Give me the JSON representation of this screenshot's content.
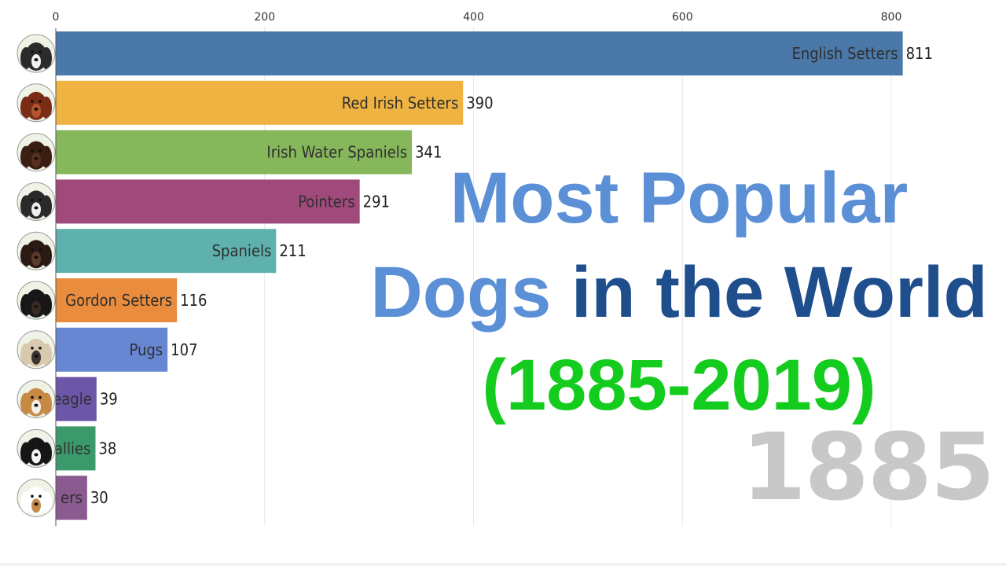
{
  "title": {
    "line1": "Most Popular",
    "line2_highlight": "Dogs",
    "line2_rest": "in the World",
    "line3": "(1885-2019)"
  },
  "year": "1885",
  "colors": {
    "title_light_blue": "#5b8fd6",
    "title_dark_blue": "#1f4e8c",
    "title_green": "#13cc1e",
    "year_gray": "#c8c8c8"
  },
  "chart_data": {
    "type": "bar",
    "orientation": "horizontal",
    "xlim": [
      0,
      811
    ],
    "x_ticks": [
      0,
      200,
      400,
      600,
      800
    ],
    "grid": true,
    "categories": [
      "English Setters",
      "Red Irish Setters",
      "Irish Water Spaniels",
      "Pointers",
      "Spaniels",
      "Gordon Setters",
      "Pugs",
      "Beagle",
      "Collies",
      "Terriers"
    ],
    "visible_labels": [
      "English Setters",
      "Red Irish Setters",
      "Irish Water Spaniels",
      "Pointers",
      "Spaniels",
      "Gordon Setters",
      "Pugs",
      "eagle",
      "allies",
      "ers"
    ],
    "values": [
      811,
      390,
      341,
      291,
      211,
      116,
      107,
      39,
      38,
      30
    ],
    "bar_colors": [
      "#4a78a8",
      "#eeb340",
      "#86b75a",
      "#a0497b",
      "#5fb1ad",
      "#ea8c3e",
      "#6787d2",
      "#6b56a8",
      "#3b9a6b",
      "#8a5a90"
    ],
    "icons": [
      "english-setter-icon",
      "red-irish-setter-icon",
      "irish-water-spaniel-icon",
      "pointer-icon",
      "spaniel-icon",
      "gordon-setter-icon",
      "pug-icon",
      "beagle-icon",
      "collie-icon",
      "terrier-icon"
    ],
    "icon_colors": [
      [
        "#2b2b2b",
        "#f2f2f2"
      ],
      [
        "#7a2c16",
        "#b5552d"
      ],
      [
        "#3b1e12",
        "#5a3020"
      ],
      [
        "#2a2a2a",
        "#efefef"
      ],
      [
        "#2a1a14",
        "#5b3b2a"
      ],
      [
        "#171717",
        "#3a2a22"
      ],
      [
        "#d9c9ae",
        "#3a3330"
      ],
      [
        "#c68a45",
        "#f5f0e8"
      ],
      [
        "#161616",
        "#f4f4f4"
      ],
      [
        "#ffffff",
        "#c48a4e"
      ]
    ]
  }
}
